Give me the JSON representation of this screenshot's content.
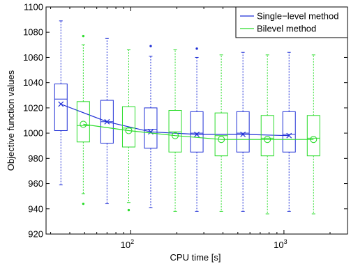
{
  "chart_data": {
    "type": "boxplot",
    "title": "",
    "xlabel": "CPU time [s]",
    "ylabel": "Objective function values",
    "x_scale": "log",
    "xlim": [
      28,
      2600
    ],
    "ylim": [
      920,
      1100
    ],
    "y_ticks": [
      920,
      940,
      960,
      980,
      1000,
      1020,
      1040,
      1060,
      1080,
      1100
    ],
    "x_ticks": [
      {
        "value": 100,
        "base": "10",
        "exp": "2"
      },
      {
        "value": 1000,
        "base": "10",
        "exp": "3"
      }
    ],
    "grid": false,
    "legend_position": "top-right",
    "series": [
      {
        "name": "Single−level method",
        "color": "#1f2fd6",
        "mean_marker": "x",
        "x": [
          35,
          70,
          135,
          270,
          540,
          1080
        ],
        "whisker_low": [
          959,
          944,
          941,
          938,
          938,
          938
        ],
        "q1": [
          1002,
          992,
          988,
          985,
          985,
          985
        ],
        "median": [
          1027,
          1009,
          1003,
          1000,
          1000,
          999
        ],
        "q3": [
          1039,
          1026,
          1020,
          1017,
          1017,
          1017
        ],
        "whisker_high": [
          1089,
          1075,
          1061,
          1060,
          1064,
          1064
        ],
        "outliers": [
          [],
          [],
          [
            1069
          ],
          [
            1067
          ],
          [],
          []
        ],
        "mean": [
          1023,
          1009,
          1001,
          999,
          999,
          998
        ]
      },
      {
        "name": "Bilevel method",
        "color": "#2bdc2b",
        "mean_marker": "o",
        "x": [
          49,
          97,
          195,
          390,
          780,
          1560
        ],
        "whisker_low": [
          952,
          945,
          938,
          938,
          936,
          936
        ],
        "q1": [
          993,
          989,
          985,
          982,
          982,
          982
        ],
        "median": [
          1006,
          1004,
          1001,
          998,
          996,
          996
        ],
        "q3": [
          1025,
          1021,
          1018,
          1016,
          1014,
          1014
        ],
        "whisker_high": [
          1070,
          1066,
          1066,
          1062,
          1062,
          1062
        ],
        "outliers": [
          [
            1077,
            944
          ],
          [
            939
          ],
          [],
          [],
          [],
          []
        ],
        "mean": [
          1007,
          1002,
          998,
          995,
          995,
          995
        ]
      }
    ]
  }
}
